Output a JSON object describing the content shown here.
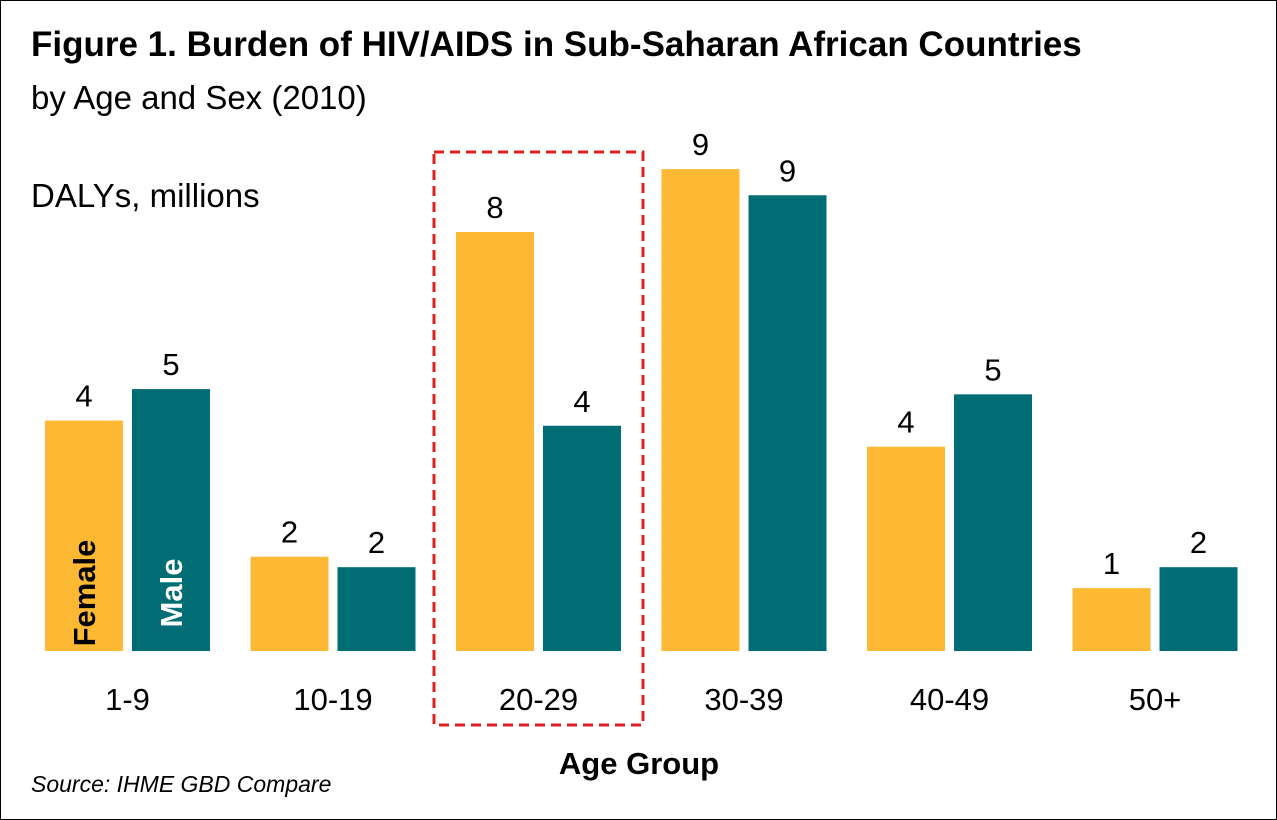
{
  "chart_data": {
    "type": "bar",
    "title": "Figure 1. Burden of HIV/AIDS in Sub-Saharan African Countries",
    "subtitle": "by Age and Sex (2010)",
    "ylabel": "DALYs, millions",
    "xlabel": "Age Group",
    "categories": [
      "1-9",
      "10-19",
      "20-29",
      "30-39",
      "40-49",
      "50+"
    ],
    "series": [
      {
        "name": "Female",
        "color": "#FDB933",
        "values": [
          4.4,
          1.8,
          8.0,
          9.2,
          3.9,
          1.2
        ],
        "labels": [
          "4",
          "2",
          "8",
          "9",
          "4",
          "1"
        ]
      },
      {
        "name": "Male",
        "color": "#006C74",
        "values": [
          5.0,
          1.6,
          4.3,
          8.7,
          4.9,
          1.6
        ],
        "labels": [
          "5",
          "2",
          "4",
          "9",
          "5",
          "2"
        ]
      }
    ],
    "ylim": [
      0,
      10.5
    ],
    "grid": false,
    "legend": "inside first-category bars",
    "highlight": {
      "category": "20-29",
      "style": "dashed red box",
      "color": "#E02020"
    },
    "source": "Source: IHME GBD Compare"
  }
}
